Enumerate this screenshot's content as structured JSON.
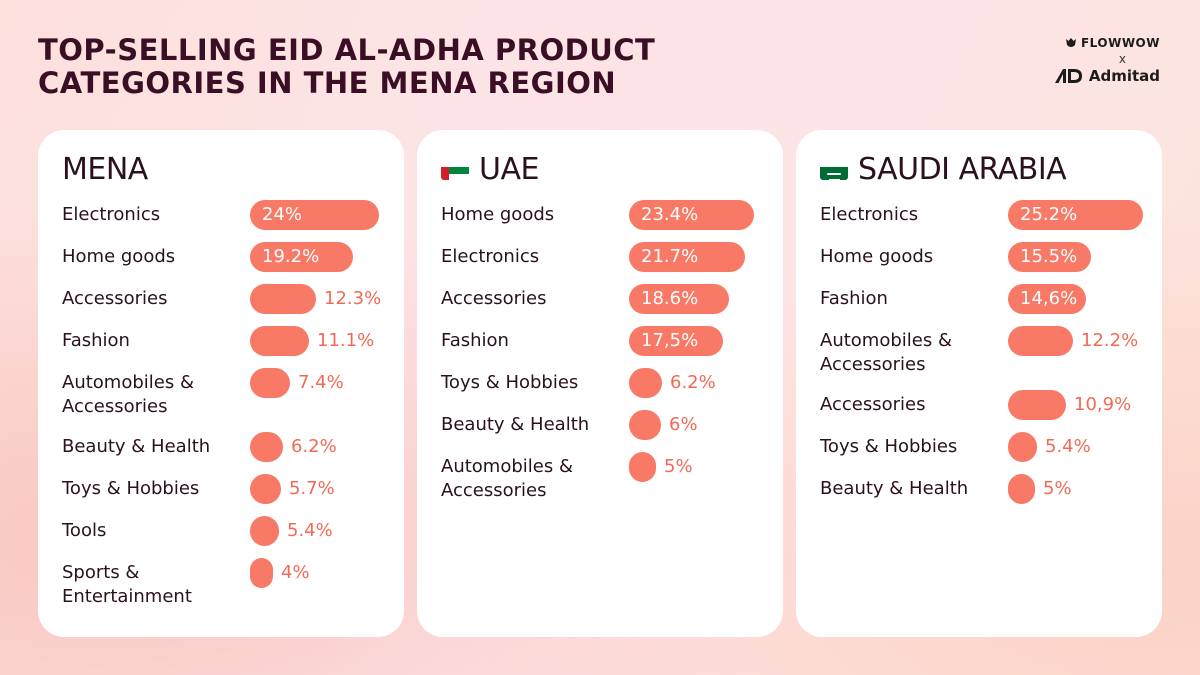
{
  "header": {
    "title": "TOP-SELLING EID AL-ADHA PRODUCT CATEGORIES IN THE MENA REGION",
    "logo_flowwow": "FLOWWOW",
    "logo_x": "x",
    "logo_admitad": "Admitad"
  },
  "colors": {
    "bar": "#f87a66",
    "value_outside": "#f26a55",
    "title": "#3a0f26"
  },
  "chart_data": [
    {
      "type": "bar",
      "orientation": "horizontal",
      "title": "MENA",
      "flag": "",
      "categories": [
        "Electronics",
        "Home goods",
        "Accessories",
        "Fashion",
        "Automobiles & Accessories",
        "Beauty & Health",
        "Toys & Hobbies",
        "Tools",
        "Sports & Entertainment"
      ],
      "labels": [
        "24%",
        "19.2%",
        "12.3%",
        "11.1%",
        "7.4%",
        "6.2%",
        "5.7%",
        "5.4%",
        "4%"
      ],
      "values": [
        24,
        19.2,
        12.3,
        11.1,
        7.4,
        6.2,
        5.7,
        5.4,
        4
      ]
    },
    {
      "type": "bar",
      "orientation": "horizontal",
      "title": "UAE",
      "flag": "uae-flag",
      "categories": [
        "Home goods",
        "Electronics",
        "Accessories",
        "Fashion",
        "Toys & Hobbies",
        "Beauty & Health",
        "Automobiles & Accessories"
      ],
      "labels": [
        "23.4%",
        "21.7%",
        "18.6%",
        "17,5%",
        "6.2%",
        "6%",
        "5%"
      ],
      "values": [
        23.4,
        21.7,
        18.6,
        17.5,
        6.2,
        6,
        5
      ]
    },
    {
      "type": "bar",
      "orientation": "horizontal",
      "title": "SAUDI ARABIA",
      "flag": "saudi-flag",
      "categories": [
        "Electronics",
        "Home goods",
        "Fashion",
        "Automobiles & Accessories",
        "Accessories",
        "Toys & Hobbies",
        "Beauty & Health"
      ],
      "labels": [
        "25.2%",
        "15.5%",
        "14,6%",
        "12.2%",
        "10,9%",
        "5.4%",
        "5%"
      ],
      "values": [
        25.2,
        15.5,
        14.6,
        12.2,
        10.9,
        5.4,
        5
      ]
    }
  ]
}
